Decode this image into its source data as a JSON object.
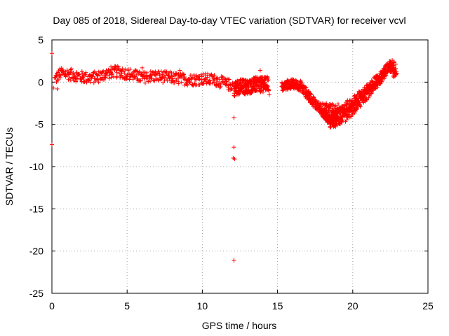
{
  "chart_data": {
    "type": "scatter",
    "title": "Day 085 of 2018, Sidereal Day-to-day VTEC variation (SDTVAR) for receiver vcvl",
    "xlabel": "GPS time / hours",
    "ylabel": "SDTVAR / TECUs",
    "xlim": [
      0,
      25
    ],
    "ylim": [
      -25,
      5
    ],
    "xticks": [
      0,
      5,
      10,
      15,
      20,
      25
    ],
    "yticks": [
      5,
      0,
      -5,
      -10,
      -15,
      -20,
      -25
    ],
    "xtick_labels": [
      "0",
      "5",
      "10",
      "15",
      "20",
      "25"
    ],
    "ytick_labels": [
      "5",
      "0",
      "-5",
      "-10",
      "-15",
      "-20",
      "-25"
    ],
    "grid": true,
    "marker": "+",
    "color": "#ff0000",
    "series": [
      {
        "name": "SDTVAR",
        "bands": [
          {
            "x": [
              0.2,
              0.5,
              1.0,
              1.5,
              2.0,
              2.5,
              3.0,
              3.5,
              4.0,
              4.5,
              5.0,
              5.5,
              6.0,
              6.5,
              7.0,
              7.5,
              8.0,
              8.5,
              9.0,
              9.5,
              10.0,
              10.5,
              11.0,
              11.5,
              12.0
            ],
            "y": [
              0.3,
              1.0,
              1.0,
              0.8,
              0.6,
              0.5,
              0.6,
              0.9,
              1.2,
              1.2,
              1.0,
              0.8,
              0.5,
              0.7,
              0.7,
              0.6,
              0.5,
              0.4,
              0.3,
              0.3,
              0.4,
              0.3,
              0.2,
              -0.2,
              -0.4
            ],
            "spread": 0.7,
            "density": 160
          },
          {
            "x": [
              12.1,
              12.5,
              13.0,
              13.5,
              14.0,
              14.4
            ],
            "y": [
              -0.8,
              -0.5,
              -0.6,
              -0.3,
              -0.3,
              -0.2
            ],
            "spread": 0.9,
            "density": 100
          },
          {
            "x": [
              15.3,
              15.8,
              16.5,
              17.0,
              17.5,
              18.0,
              18.5,
              19.0
            ],
            "y": [
              -0.6,
              -0.2,
              -0.4,
              -1.5,
              -2.5,
              -3.5,
              -4.5,
              -3.8
            ],
            "spread": 0.6,
            "density": 120
          },
          {
            "x": [
              18.5,
              19.0,
              19.5,
              20.0,
              20.5,
              21.0,
              21.5,
              22.0,
              22.3,
              22.6,
              22.9
            ],
            "y": [
              -4.8,
              -4.5,
              -4.0,
              -3.2,
              -2.2,
              -1.3,
              -0.2,
              0.8,
              1.6,
              2.0,
              1.5
            ],
            "spread": 0.7,
            "density": 130
          },
          {
            "x": [
              18.0,
              18.8,
              19.5,
              20.2,
              21.0,
              21.8,
              22.4,
              22.8
            ],
            "y": [
              -3.0,
              -3.2,
              -3.0,
              -2.0,
              -0.8,
              0.6,
              1.8,
              1.0
            ],
            "spread": 0.6,
            "density": 90
          }
        ],
        "outliers": [
          [
            0.0,
            3.4
          ],
          [
            0.0,
            -7.4
          ],
          [
            0.1,
            -0.7
          ],
          [
            0.35,
            -0.8
          ],
          [
            12.1,
            -4.2
          ],
          [
            12.1,
            -7.7
          ],
          [
            12.05,
            -9.0
          ],
          [
            12.15,
            -9.1
          ],
          [
            12.1,
            -21.1
          ],
          [
            6.0,
            1.7
          ],
          [
            8.5,
            1.4
          ],
          [
            13.85,
            1.4
          ],
          [
            14.45,
            -1.5
          ]
        ]
      }
    ]
  }
}
